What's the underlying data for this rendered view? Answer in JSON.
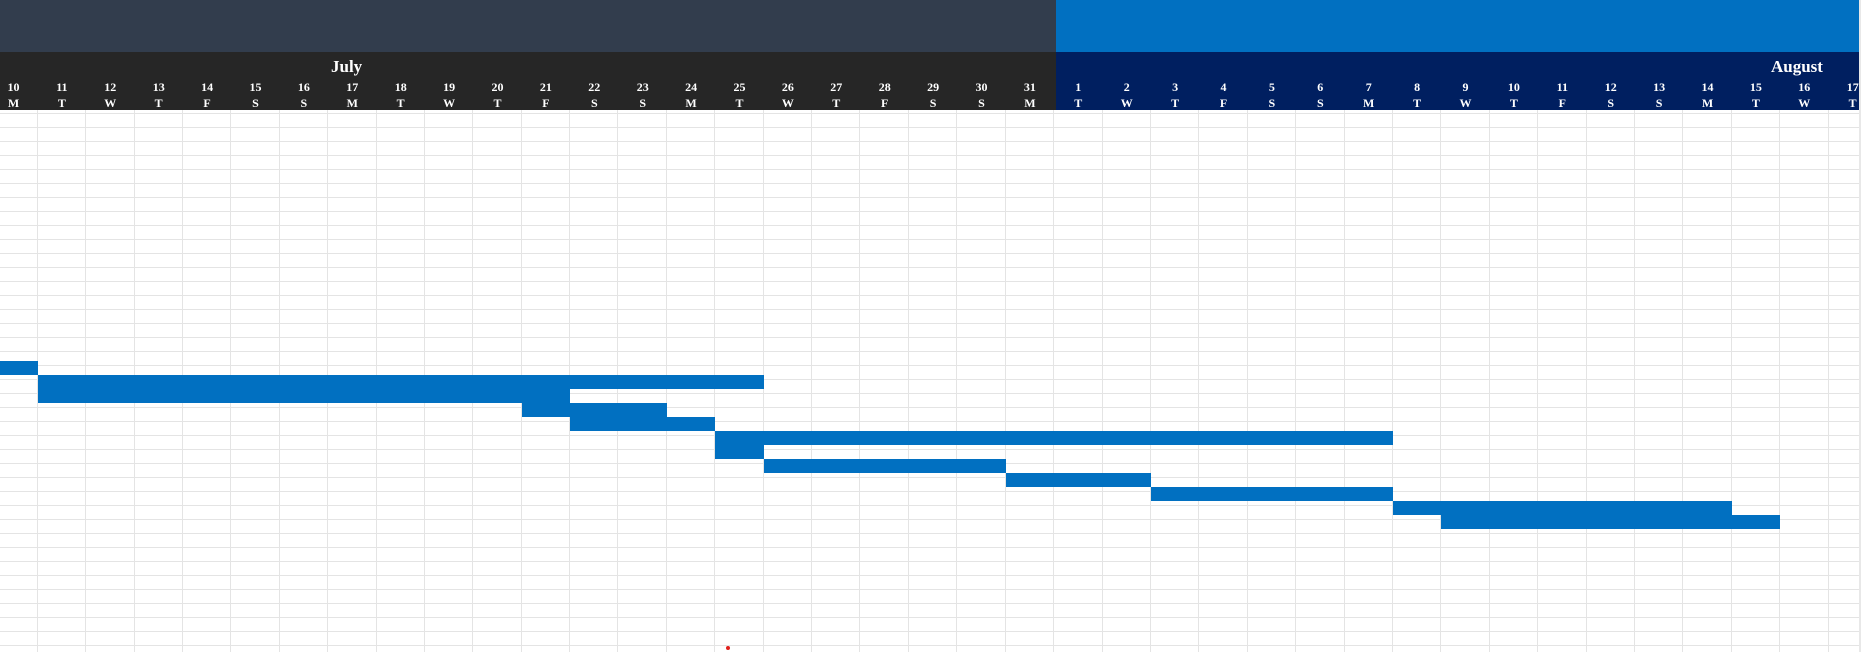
{
  "timeline": {
    "months": [
      {
        "name": "July"
      },
      {
        "name": "August"
      }
    ],
    "days": [
      {
        "num": "10",
        "wd": "M"
      },
      {
        "num": "11",
        "wd": "T"
      },
      {
        "num": "12",
        "wd": "W"
      },
      {
        "num": "13",
        "wd": "T"
      },
      {
        "num": "14",
        "wd": "F"
      },
      {
        "num": "15",
        "wd": "S"
      },
      {
        "num": "16",
        "wd": "S"
      },
      {
        "num": "17",
        "wd": "M"
      },
      {
        "num": "18",
        "wd": "T"
      },
      {
        "num": "19",
        "wd": "W"
      },
      {
        "num": "20",
        "wd": "T"
      },
      {
        "num": "21",
        "wd": "F"
      },
      {
        "num": "22",
        "wd": "S"
      },
      {
        "num": "23",
        "wd": "S"
      },
      {
        "num": "24",
        "wd": "M"
      },
      {
        "num": "25",
        "wd": "T"
      },
      {
        "num": "26",
        "wd": "W"
      },
      {
        "num": "27",
        "wd": "T"
      },
      {
        "num": "28",
        "wd": "F"
      },
      {
        "num": "29",
        "wd": "S"
      },
      {
        "num": "30",
        "wd": "S"
      },
      {
        "num": "31",
        "wd": "M"
      },
      {
        "num": "1",
        "wd": "T"
      },
      {
        "num": "2",
        "wd": "W"
      },
      {
        "num": "3",
        "wd": "T"
      },
      {
        "num": "4",
        "wd": "F"
      },
      {
        "num": "5",
        "wd": "S"
      },
      {
        "num": "6",
        "wd": "S"
      },
      {
        "num": "7",
        "wd": "M"
      },
      {
        "num": "8",
        "wd": "T"
      },
      {
        "num": "9",
        "wd": "W"
      },
      {
        "num": "10",
        "wd": "T"
      },
      {
        "num": "11",
        "wd": "F"
      },
      {
        "num": "12",
        "wd": "S"
      },
      {
        "num": "13",
        "wd": "S"
      },
      {
        "num": "14",
        "wd": "M"
      },
      {
        "num": "15",
        "wd": "T"
      },
      {
        "num": "16",
        "wd": "W"
      },
      {
        "num": "17",
        "wd": "T"
      }
    ]
  },
  "gantt": {
    "tasks": [
      {
        "start": "Jul 10",
        "end": "Jul 10"
      },
      {
        "start": "Jul 11",
        "end": "Jul 25"
      },
      {
        "start": "Jul 11",
        "end": "Jul 21"
      },
      {
        "start": "Jul 21",
        "end": "Jul 21"
      },
      {
        "start": "Jul 22",
        "end": "Jul 23"
      },
      {
        "start": "Jul 22",
        "end": "Jul 24"
      },
      {
        "start": "Jul 25",
        "end": "Aug 7"
      },
      {
        "start": "Jul 25",
        "end": "Jul 25"
      },
      {
        "start": "Jul 26",
        "end": "Jul 30"
      },
      {
        "start": "Jul 31",
        "end": "Aug 2"
      },
      {
        "start": "Aug 3",
        "end": "Aug 7"
      },
      {
        "start": "Aug 8",
        "end": "Aug 14"
      },
      {
        "start": "Aug 9",
        "end": "Aug 14"
      },
      {
        "start": "Aug 9",
        "end": "Aug 15"
      }
    ],
    "bar_color": "#0170c1"
  },
  "colors": {
    "header_dark": "#323d4d",
    "header_blue": "#0170c1",
    "july_row": "#262626",
    "august_row": "#001f60",
    "grid_line": "#e4e4e4"
  }
}
